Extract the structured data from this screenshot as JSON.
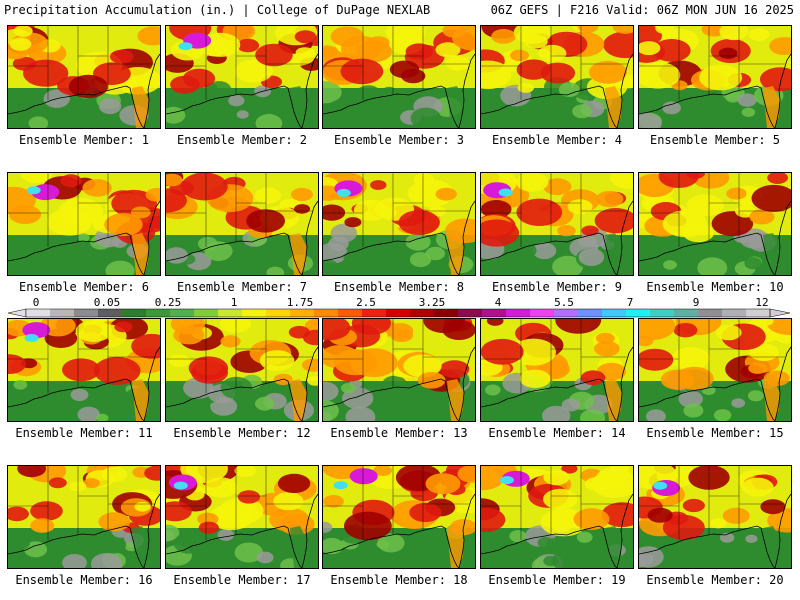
{
  "header": {
    "left": "Precipitation Accumulation (in.) | College of DuPage NEXLAB",
    "right": "06Z GEFS | F216 Valid: 06Z MON JUN 16 2025"
  },
  "panels": [
    {
      "label": "Ensemble Member: 1"
    },
    {
      "label": "Ensemble Member: 2"
    },
    {
      "label": "Ensemble Member: 3"
    },
    {
      "label": "Ensemble Member: 4"
    },
    {
      "label": "Ensemble Member: 5"
    },
    {
      "label": "Ensemble Member: 6"
    },
    {
      "label": "Ensemble Member: 7"
    },
    {
      "label": "Ensemble Member: 8"
    },
    {
      "label": "Ensemble Member: 9"
    },
    {
      "label": "Ensemble Member: 10"
    },
    {
      "label": "Ensemble Member: 11"
    },
    {
      "label": "Ensemble Member: 12"
    },
    {
      "label": "Ensemble Member: 13"
    },
    {
      "label": "Ensemble Member: 14"
    },
    {
      "label": "Ensemble Member: 15"
    },
    {
      "label": "Ensemble Member: 16"
    },
    {
      "label": "Ensemble Member: 17"
    },
    {
      "label": "Ensemble Member: 18"
    },
    {
      "label": "Ensemble Member: 19"
    },
    {
      "label": "Ensemble Member: 20"
    }
  ],
  "colorbar": {
    "labels": [
      "0",
      "0.05",
      "0.25",
      "1",
      "1.75",
      "2.5",
      "3.25",
      "4",
      "5.5",
      "7",
      "9",
      "12"
    ],
    "colors": [
      "#e0e0e0",
      "#b8b8b8",
      "#8c8c8c",
      "#5e5e5e",
      "#2e7d2e",
      "#3a9a3a",
      "#52b052",
      "#7ccf3a",
      "#c8e632",
      "#f5f50a",
      "#ffd700",
      "#ffb000",
      "#ff8c00",
      "#ff5a00",
      "#f02010",
      "#d40000",
      "#b00000",
      "#8b0000",
      "#8b0a50",
      "#b0108a",
      "#d81ad8",
      "#f040f0",
      "#b070ff",
      "#7090ff",
      "#40c8ff",
      "#20f0f0",
      "#40d0c0",
      "#60b0a0",
      "#909090",
      "#b0b0b0",
      "#d0d0d0"
    ]
  },
  "map_colors": {
    "green": "#2e8b2e",
    "lightgreen": "#6cc04a",
    "yellow": "#f5f50a",
    "orange": "#ff9a00",
    "red": "#e01a10",
    "darkred": "#a00000",
    "magenta": "#d81ad8",
    "cyan": "#40e0f0",
    "gray": "#9a9a9a",
    "coast": "#000000"
  }
}
